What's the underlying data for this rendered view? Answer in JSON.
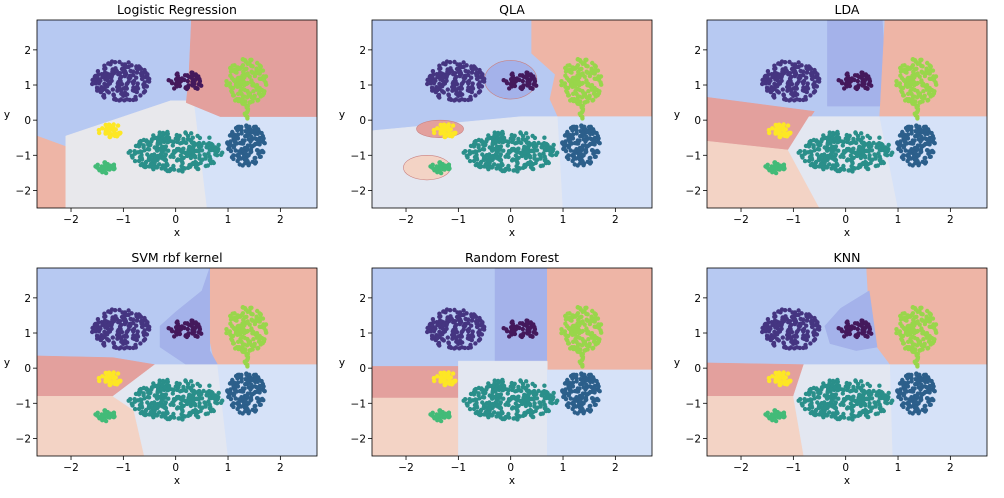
{
  "figure": {
    "colors": {
      "region_blue": "#b7c9f2",
      "region_blue_alt": "#d6e2f8",
      "region_purple": "#a4b2ea",
      "region_red": "#e3a09d",
      "region_salmon": "#eeb5a6",
      "region_peach": "#f3d3c5",
      "region_gray": "#e8e8ec",
      "region_lightgray": "#e3e7f1",
      "cluster_darkpurple": "#44195c",
      "cluster_indigo": "#453581",
      "cluster_lime": "#99d64b",
      "cluster_yellow": "#fde725",
      "cluster_teal": "#2a8f8a",
      "cluster_steelblue": "#2c5f8b",
      "cluster_green": "#43bb78"
    }
  },
  "chart_data": [
    {
      "type": "scatter",
      "title": "Logistic Regression",
      "xlabel": "x",
      "ylabel": "y",
      "xlim": [
        -2.65,
        2.7
      ],
      "ylim": [
        -2.5,
        2.85
      ],
      "xticks": [
        "−2",
        "−1",
        "0",
        "1",
        "2"
      ],
      "yticks": [
        "2",
        "1",
        "0",
        "−1",
        "−2"
      ],
      "grid": false,
      "clusters": [
        {
          "shape": "ellipse",
          "center": [
            -1.05,
            1.1
          ],
          "radii": [
            0.55,
            0.6
          ],
          "color": "cluster_indigo",
          "n": 190
        },
        {
          "shape": "ellipse",
          "center": [
            0.2,
            1.1
          ],
          "radii": [
            0.35,
            0.27
          ],
          "color": "cluster_darkpurple",
          "n": 55
        },
        {
          "shape": "ellipse",
          "center": [
            1.35,
            1.1
          ],
          "radii": [
            0.4,
            0.65
          ],
          "color": "cluster_lime",
          "n": 150
        },
        {
          "shape": "ellipse",
          "center": [
            -1.25,
            -0.3
          ],
          "radii": [
            0.23,
            0.2
          ],
          "color": "cluster_yellow",
          "n": 40
        },
        {
          "shape": "ellipse",
          "center": [
            0.0,
            -0.9
          ],
          "radii": [
            0.9,
            0.58
          ],
          "color": "cluster_teal",
          "n": 300
        },
        {
          "shape": "ellipse",
          "center": [
            1.35,
            -0.7
          ],
          "radii": [
            0.37,
            0.6
          ],
          "color": "cluster_steelblue",
          "n": 150
        },
        {
          "shape": "ellipse",
          "center": [
            -1.35,
            -1.35
          ],
          "radii": [
            0.2,
            0.17
          ],
          "color": "cluster_green",
          "n": 35
        }
      ]
    },
    {
      "type": "scatter",
      "title": "QLA",
      "xlabel": "x",
      "ylabel": "y",
      "xlim": [
        -2.65,
        2.7
      ],
      "ylim": [
        -2.5,
        2.85
      ],
      "xticks": [
        "−2",
        "−1",
        "0",
        "1",
        "2"
      ],
      "yticks": [
        "2",
        "1",
        "0",
        "−1",
        "−2"
      ],
      "grid": false
    },
    {
      "type": "scatter",
      "title": "LDA",
      "xlabel": "x",
      "ylabel": "y",
      "xlim": [
        -2.65,
        2.7
      ],
      "ylim": [
        -2.5,
        2.85
      ],
      "xticks": [
        "−2",
        "−1",
        "0",
        "1",
        "2"
      ],
      "yticks": [
        "2",
        "1",
        "0",
        "−1",
        "−2"
      ],
      "grid": false
    },
    {
      "type": "scatter",
      "title": "SVM rbf kernel",
      "xlabel": "x",
      "ylabel": "y",
      "xlim": [
        -2.65,
        2.7
      ],
      "ylim": [
        -2.5,
        2.85
      ],
      "xticks": [
        "−2",
        "−1",
        "0",
        "1",
        "2"
      ],
      "yticks": [
        "2",
        "1",
        "0",
        "−1",
        "−2"
      ],
      "grid": false
    },
    {
      "type": "scatter",
      "title": "Random Forest",
      "xlabel": "x",
      "ylabel": "y",
      "xlim": [
        -2.65,
        2.7
      ],
      "ylim": [
        -2.5,
        2.85
      ],
      "xticks": [
        "−2",
        "−1",
        "0",
        "1",
        "2"
      ],
      "yticks": [
        "2",
        "1",
        "0",
        "−1",
        "−2"
      ],
      "grid": false
    },
    {
      "type": "scatter",
      "title": "KNN",
      "xlabel": "x",
      "ylabel": "y",
      "xlim": [
        -2.65,
        2.7
      ],
      "ylim": [
        -2.5,
        2.85
      ],
      "xticks": [
        "−2",
        "−1",
        "0",
        "1",
        "2"
      ],
      "yticks": [
        "2",
        "1",
        "0",
        "−1",
        "−2"
      ],
      "grid": false
    }
  ],
  "regions": [
    [
      {
        "pts": [
          [
            -2.65,
            -0.45
          ],
          [
            -2.1,
            -0.75
          ],
          [
            -2.1,
            -2.5
          ],
          [
            -2.65,
            -2.5
          ]
        ],
        "color": "region_salmon"
      },
      {
        "pts": [
          [
            -2.1,
            -0.45
          ],
          [
            -0.1,
            0.55
          ],
          [
            0.3,
            0.55
          ],
          [
            0.85,
            0.1
          ],
          [
            0.85,
            0.1
          ],
          [
            0.6,
            -2.5
          ],
          [
            -2.1,
            -2.5
          ]
        ],
        "color": "region_gray"
      },
      {
        "pts": [
          [
            0.35,
            0.55
          ],
          [
            0.85,
            0.1
          ],
          [
            2.7,
            0.1
          ],
          [
            2.7,
            -2.5
          ],
          [
            0.6,
            -2.5
          ]
        ],
        "color": "region_blue_alt"
      },
      {
        "pts": [
          [
            0.3,
            2.85
          ],
          [
            2.7,
            2.85
          ],
          [
            2.7,
            0.1
          ],
          [
            0.85,
            0.1
          ],
          [
            0.2,
            0.5
          ],
          [
            0.25,
            1.2
          ]
        ],
        "color": "region_red"
      }
    ],
    [
      {
        "pts": [
          [
            0.4,
            2.85
          ],
          [
            2.7,
            2.85
          ],
          [
            2.7,
            0.1
          ],
          [
            0.9,
            0.1
          ],
          [
            0.75,
            0.6
          ],
          [
            0.85,
            1.3
          ],
          [
            0.4,
            1.9
          ]
        ],
        "color": "region_salmon"
      },
      {
        "pts": [
          [
            -2.65,
            -0.3
          ],
          [
            0.2,
            0.1
          ],
          [
            0.9,
            0.1
          ],
          [
            1.0,
            -2.5
          ],
          [
            -2.65,
            -2.5
          ]
        ],
        "color": "region_lightgray"
      },
      {
        "pts": [
          [
            0.9,
            0.1
          ],
          [
            2.7,
            0.1
          ],
          [
            2.7,
            -2.5
          ],
          [
            1.0,
            -2.5
          ]
        ],
        "color": "region_blue_alt"
      },
      {
        "shape": "ellipse",
        "center": [
          0.0,
          1.15
        ],
        "radii": [
          0.5,
          0.55
        ],
        "color": "region_purple"
      },
      {
        "shape": "ellipse",
        "center": [
          -1.35,
          -0.25
        ],
        "radii": [
          0.45,
          0.25
        ],
        "color": "region_red"
      },
      {
        "shape": "ellipse",
        "center": [
          -1.6,
          -1.35
        ],
        "radii": [
          0.45,
          0.35
        ],
        "color": "region_peach"
      }
    ],
    [
      {
        "pts": [
          [
            -0.35,
            2.85
          ],
          [
            0.7,
            2.85
          ],
          [
            0.8,
            0.4
          ],
          [
            -0.35,
            0.4
          ]
        ],
        "color": "region_purple"
      },
      {
        "pts": [
          [
            0.75,
            2.85
          ],
          [
            2.7,
            2.85
          ],
          [
            2.7,
            0.1
          ],
          [
            0.65,
            0.1
          ]
        ],
        "color": "region_salmon"
      },
      {
        "pts": [
          [
            -2.65,
            0.65
          ],
          [
            -0.6,
            0.25
          ],
          [
            -1.1,
            -0.85
          ],
          [
            -2.65,
            -0.6
          ]
        ],
        "color": "region_red"
      },
      {
        "pts": [
          [
            -2.65,
            -0.6
          ],
          [
            -1.1,
            -0.85
          ],
          [
            -0.5,
            -2.5
          ],
          [
            -2.65,
            -2.5
          ]
        ],
        "color": "region_peach"
      },
      {
        "pts": [
          [
            -0.7,
            0.1
          ],
          [
            0.65,
            0.1
          ],
          [
            1.0,
            -2.5
          ],
          [
            -0.5,
            -2.5
          ],
          [
            -1.1,
            -0.85
          ]
        ],
        "color": "region_lightgray"
      },
      {
        "pts": [
          [
            0.65,
            0.1
          ],
          [
            2.7,
            0.1
          ],
          [
            2.7,
            -2.5
          ],
          [
            1.0,
            -2.5
          ]
        ],
        "color": "region_blue_alt"
      }
    ],
    [
      {
        "pts": [
          [
            0.65,
            2.85
          ],
          [
            2.7,
            2.85
          ],
          [
            2.7,
            0.1
          ],
          [
            0.75,
            0.1
          ],
          [
            0.65,
            0.8
          ]
        ],
        "color": "region_salmon"
      },
      {
        "pts": [
          [
            0.65,
            2.85
          ],
          [
            0.65,
            0.5
          ],
          [
            0.8,
            0.1
          ],
          [
            0.3,
            0.0
          ],
          [
            0.0,
            0.3
          ],
          [
            -0.3,
            0.6
          ],
          [
            -0.3,
            1.2
          ],
          [
            0.0,
            1.6
          ],
          [
            0.5,
            2.2
          ]
        ],
        "color": "region_purple"
      },
      {
        "pts": [
          [
            -2.65,
            0.35
          ],
          [
            -1.2,
            0.3
          ],
          [
            -0.4,
            0.1
          ],
          [
            -1.2,
            -0.8
          ],
          [
            -2.65,
            -0.8
          ]
        ],
        "color": "region_red"
      },
      {
        "pts": [
          [
            -2.65,
            -0.8
          ],
          [
            -1.2,
            -0.8
          ],
          [
            -0.8,
            -1.2
          ],
          [
            -0.6,
            -2.5
          ],
          [
            -2.65,
            -2.5
          ]
        ],
        "color": "region_peach"
      },
      {
        "pts": [
          [
            -0.4,
            0.1
          ],
          [
            0.8,
            0.1
          ],
          [
            1.0,
            -2.5
          ],
          [
            -0.6,
            -2.5
          ],
          [
            -0.8,
            -1.2
          ],
          [
            -1.2,
            -0.8
          ]
        ],
        "color": "region_lightgray"
      },
      {
        "pts": [
          [
            0.8,
            0.1
          ],
          [
            2.7,
            0.1
          ],
          [
            2.7,
            -2.5
          ],
          [
            1.0,
            -2.5
          ]
        ],
        "color": "region_blue_alt"
      }
    ],
    [
      {
        "pts": [
          [
            -0.3,
            2.85
          ],
          [
            0.7,
            2.85
          ],
          [
            0.7,
            0.2
          ],
          [
            -0.3,
            0.2
          ]
        ],
        "color": "region_purple"
      },
      {
        "pts": [
          [
            0.7,
            2.85
          ],
          [
            2.7,
            2.85
          ],
          [
            2.7,
            -0.05
          ],
          [
            0.7,
            -0.05
          ]
        ],
        "color": "region_salmon"
      },
      {
        "pts": [
          [
            -2.65,
            0.05
          ],
          [
            -1.0,
            0.05
          ],
          [
            -1.0,
            -0.85
          ],
          [
            -2.65,
            -0.85
          ]
        ],
        "color": "region_red"
      },
      {
        "pts": [
          [
            -2.65,
            -0.85
          ],
          [
            -1.0,
            -0.85
          ],
          [
            -1.0,
            -2.5
          ],
          [
            -2.65,
            -2.5
          ]
        ],
        "color": "region_peach"
      },
      {
        "pts": [
          [
            -1.0,
            0.2
          ],
          [
            0.7,
            0.2
          ],
          [
            0.7,
            -2.5
          ],
          [
            -1.0,
            -2.5
          ]
        ],
        "color": "region_lightgray"
      },
      {
        "pts": [
          [
            0.7,
            -0.05
          ],
          [
            2.7,
            -0.05
          ],
          [
            2.7,
            -2.5
          ],
          [
            0.7,
            -2.5
          ]
        ],
        "color": "region_blue_alt"
      }
    ],
    [
      {
        "pts": [
          [
            0.4,
            2.85
          ],
          [
            2.7,
            2.85
          ],
          [
            2.7,
            0.1
          ],
          [
            0.85,
            0.1
          ],
          [
            0.6,
            0.6
          ],
          [
            0.45,
            1.5
          ]
        ],
        "color": "region_salmon"
      },
      {
        "pts": [
          [
            0.45,
            2.2
          ],
          [
            0.6,
            0.6
          ],
          [
            0.2,
            0.5
          ],
          [
            -0.3,
            0.7
          ],
          [
            -0.4,
            1.2
          ],
          [
            -0.1,
            1.7
          ]
        ],
        "color": "region_purple"
      },
      {
        "pts": [
          [
            -2.65,
            0.15
          ],
          [
            -0.8,
            0.1
          ],
          [
            -1.0,
            -0.8
          ],
          [
            -2.65,
            -0.8
          ]
        ],
        "color": "region_red"
      },
      {
        "pts": [
          [
            -2.65,
            -0.8
          ],
          [
            -1.0,
            -0.8
          ],
          [
            -0.8,
            -2.5
          ],
          [
            -2.65,
            -2.5
          ]
        ],
        "color": "region_peach"
      },
      {
        "pts": [
          [
            -0.8,
            0.1
          ],
          [
            0.85,
            0.1
          ],
          [
            0.9,
            -2.5
          ],
          [
            -0.8,
            -2.5
          ],
          [
            -1.0,
            -0.8
          ]
        ],
        "color": "region_lightgray"
      },
      {
        "pts": [
          [
            0.85,
            0.1
          ],
          [
            2.7,
            0.1
          ],
          [
            2.7,
            -2.5
          ],
          [
            0.9,
            -2.5
          ]
        ],
        "color": "region_blue_alt"
      }
    ]
  ]
}
